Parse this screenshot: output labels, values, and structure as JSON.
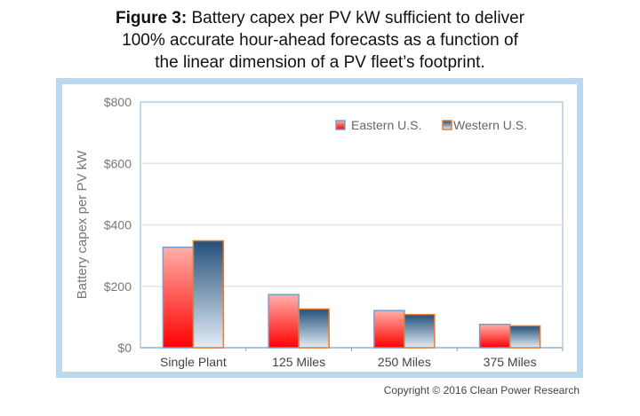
{
  "title": {
    "bold": "Figure 3:",
    "text": " Battery capex per PV kW sufficient to deliver",
    "line2": "100% accurate hour-ahead forecasts as a function of",
    "line3": "the linear dimension of a PV fleet’s footprint."
  },
  "copyright": "Copyright © 2016 Clean Power Research",
  "chart_data": {
    "type": "bar",
    "title": "Battery capex per PV kW sufficient to deliver 100% accurate hour-ahead forecasts as a function of the linear dimension of a PV fleet’s footprint.",
    "xlabel": "",
    "ylabel": "Battery capex per PV kW",
    "ylim": [
      0,
      800
    ],
    "yticks": [
      "$0",
      "$200",
      "$400",
      "$600",
      "$800"
    ],
    "categories": [
      "Single Plant",
      "125 Miles",
      "250 Miles",
      "375 Miles"
    ],
    "series": [
      {
        "name": "Eastern U.S.",
        "values": [
          327,
          173,
          121,
          76
        ],
        "color": "#ff0000",
        "border": "#6fa0d8"
      },
      {
        "name": "Western U.S.",
        "values": [
          348,
          126,
          108,
          71
        ],
        "color": "#24507a",
        "border": "#e97a2e"
      }
    ],
    "legend": "top-right",
    "grid": true
  }
}
